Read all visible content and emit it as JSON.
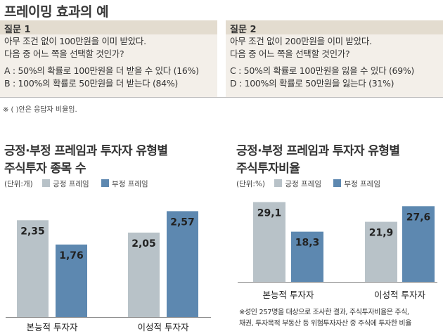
{
  "title": "프레이밍 효과의 예",
  "questions": [
    {
      "header": "질문 1",
      "lines": [
        "아무 조건 없이 100만원을 이미 받았다.",
        "다음 중 어느 쪽을 선택할 것인가?"
      ],
      "options": [
        "A : 50%의 확률로 100만원을 더 받을 수 있다 (16%)",
        "B : 100%의 확률로 50만원을 더 받는다 (84%)"
      ]
    },
    {
      "header": "질문 2",
      "lines": [
        "아무 조건 없이 200만원을 이미 받았다.",
        "다음 중 어느 쪽을 선택할 것인가?"
      ],
      "options": [
        "C : 50%의 확률로 100만원을 잃을 수 있다 (69%)",
        "D : 100%의 확률로 50만원을 잃는다 (31%)"
      ]
    }
  ],
  "top_note": "※ ( )안은 응답자 비율임.",
  "colors": {
    "positive": "#b8c2c8",
    "negative": "#5d88b0"
  },
  "chart_data": [
    {
      "type": "bar",
      "title": [
        "긍정·부정 프레임과 투자자 유형별",
        "주식투자 종목 수"
      ],
      "unit": "(단위:개)",
      "categories": [
        "본능적 투자자",
        "이성적 투자자"
      ],
      "series": [
        {
          "name": "긍정 프레임",
          "values": [
            2.35,
            2.05
          ],
          "labels": [
            "2,35",
            "2,05"
          ]
        },
        {
          "name": "부정 프레임",
          "values": [
            1.76,
            2.57
          ],
          "labels": [
            "1,76",
            "2,57"
          ]
        }
      ],
      "ylim": [
        0,
        2.85
      ]
    },
    {
      "type": "bar",
      "title": [
        "긍정·부정 프레임과 투자자 유형별",
        "주식투자비율"
      ],
      "unit": "(단위:%)",
      "categories": [
        "본능적 투자자",
        "이성적 투자자"
      ],
      "series": [
        {
          "name": "긍정 프레임",
          "values": [
            29.1,
            21.9
          ],
          "labels": [
            "29,1",
            "21,9"
          ]
        },
        {
          "name": "부정 프레임",
          "values": [
            18.3,
            27.6
          ],
          "labels": [
            "18,3",
            "27,6"
          ]
        }
      ],
      "ylim": [
        0,
        30.5
      ],
      "note": [
        "※성인 257명을 대상으로 조사한 결과, 주식투자비율은 주식,",
        "채권, 투자목적 부동산 등 위험투자자산 중 주식에 투자한 비율"
      ]
    }
  ]
}
